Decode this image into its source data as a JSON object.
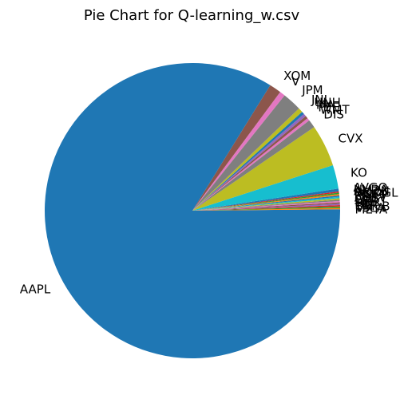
{
  "chart_data": {
    "type": "pie",
    "title": "Pie Chart for Q-learning_w.csv",
    "start_angle_deg": 0,
    "direction": "counterclockwise",
    "slices": [
      {
        "label": "META",
        "value": 0.15,
        "color": "#1f77b4"
      },
      {
        "label": "TSLA",
        "value": 0.15,
        "color": "#ff7f0e"
      },
      {
        "label": "BRK-B",
        "value": 0.15,
        "color": "#2ca02c"
      },
      {
        "label": "LLY",
        "value": 0.15,
        "color": "#d62728"
      },
      {
        "label": "HD",
        "value": 0.15,
        "color": "#9467bd"
      },
      {
        "label": "MRK",
        "value": 0.15,
        "color": "#8c564b"
      },
      {
        "label": "PEP",
        "value": 0.15,
        "color": "#e377c2"
      },
      {
        "label": "COST",
        "value": 0.15,
        "color": "#7f7f7f"
      },
      {
        "label": "ABBV",
        "value": 0.15,
        "color": "#bcbd22"
      },
      {
        "label": "PG",
        "value": 0.15,
        "color": "#17becf"
      },
      {
        "label": "MSFT",
        "value": 0.15,
        "color": "#1f77b4"
      },
      {
        "label": "GOOGL",
        "value": 0.15,
        "color": "#ff7f0e"
      },
      {
        "label": "AMZN",
        "value": 0.15,
        "color": "#2ca02c"
      },
      {
        "label": "NVDA",
        "value": 0.15,
        "color": "#d62728"
      },
      {
        "label": "AVGO",
        "value": 0.3,
        "color": "#1f77b4"
      },
      {
        "label": "KO",
        "value": 2.6,
        "color": "#17becf"
      },
      {
        "label": "CVX",
        "value": 4.6,
        "color": "#bcbd22"
      },
      {
        "label": "DIS",
        "value": 0.9,
        "color": "#7f7f7f"
      },
      {
        "label": "WMT",
        "value": 0.3,
        "color": "#e377c2"
      },
      {
        "label": "PFE",
        "value": 0.3,
        "color": "#8c564b"
      },
      {
        "label": "MA",
        "value": 0.3,
        "color": "#9467bd"
      },
      {
        "label": "UNH",
        "value": 0.3,
        "color": "#1f77b4"
      },
      {
        "label": "JNJ",
        "value": 0.5,
        "color": "#bcbd22"
      },
      {
        "label": "JPM",
        "value": 2.1,
        "color": "#7f7f7f"
      },
      {
        "label": "V",
        "value": 0.6,
        "color": "#e377c2"
      },
      {
        "label": "XOM",
        "value": 1.3,
        "color": "#8c564b"
      },
      {
        "label": "AAPL",
        "value": 84.0,
        "color": "#1f77b4"
      }
    ]
  }
}
